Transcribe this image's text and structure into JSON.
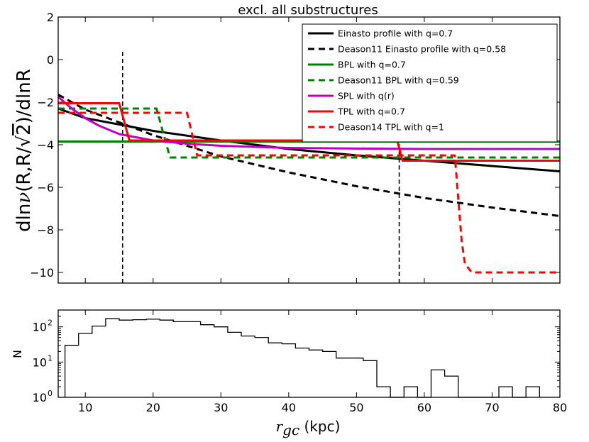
{
  "chart_data": [
    {
      "type": "line",
      "title": "excl. all substructures",
      "xlabel": "",
      "ylabel": "dlnν(R,R/√2)/dlnR",
      "ylabel_parts": {
        "a": "dln",
        "nu": "ν",
        "b": "(R,R/",
        "sqrt": "√",
        "two": "2",
        "c": ")/dlnR"
      },
      "xlim": [
        6,
        80
      ],
      "ylim": [
        -10.5,
        2
      ],
      "xticks": [
        10,
        20,
        30,
        40,
        50,
        60,
        70,
        80
      ],
      "yticks": [
        2,
        0,
        -2,
        -4,
        -6,
        -8,
        -10
      ],
      "ytick_labels": [
        "2",
        "0",
        "−2",
        "−4",
        "−6",
        "−8",
        "−10"
      ],
      "legend_position": "top-right",
      "vlines": [
        15.5,
        56.3
      ],
      "vline_ymax": 0.5,
      "series": [
        {
          "name": "Einasto profile with q=0.7",
          "color": "#000000",
          "dash": "solid",
          "x": [
            6,
            10,
            20,
            30,
            40,
            50,
            60,
            70,
            80
          ],
          "y": [
            -2.3,
            -2.75,
            -3.35,
            -3.8,
            -4.2,
            -4.5,
            -4.75,
            -5.0,
            -5.25
          ]
        },
        {
          "name": "Deason11 Einasto profile with q=0.58",
          "color": "#000000",
          "dash": "dashed",
          "x": [
            6,
            10,
            20,
            30,
            40,
            50,
            60,
            70,
            80
          ],
          "y": [
            -1.65,
            -2.35,
            -3.55,
            -4.55,
            -5.3,
            -5.95,
            -6.5,
            -6.95,
            -7.35
          ]
        },
        {
          "name": "BPL with q=0.7",
          "color": "#008000",
          "dash": "solid",
          "x": [
            6,
            56.3,
            56.3,
            80
          ],
          "y": [
            -3.85,
            -3.85,
            -3.85,
            -3.85
          ]
        },
        {
          "name": "Deason11 BPL with q=0.59",
          "color": "#008000",
          "dash": "dashed",
          "x": [
            6,
            20.5,
            22.5,
            80
          ],
          "y": [
            -2.3,
            -2.3,
            -4.6,
            -4.6
          ]
        },
        {
          "name": "SPL with q(r)",
          "color": "#bf00bf",
          "dash": "solid",
          "x": [
            6,
            8,
            10,
            12,
            15,
            20,
            25,
            30,
            40,
            50,
            60,
            70,
            80
          ],
          "y": [
            -1.75,
            -2.3,
            -2.75,
            -3.1,
            -3.5,
            -3.8,
            -3.95,
            -4.05,
            -4.15,
            -4.18,
            -4.2,
            -4.2,
            -4.2
          ]
        },
        {
          "name": "TPL with q=0.7",
          "color": "#ff0000",
          "dash": "solid",
          "x": [
            6,
            15,
            16.5,
            56,
            56.8,
            80
          ],
          "y": [
            -2.05,
            -2.05,
            -3.8,
            -3.8,
            -4.75,
            -4.75
          ]
        },
        {
          "name": "Deason14 TPL with q=1",
          "color": "#ff0000",
          "dash": "dashed",
          "x": [
            6,
            25,
            26.5,
            64.5,
            65,
            65.5,
            66,
            67,
            80
          ],
          "y": [
            -2.5,
            -2.5,
            -4.5,
            -4.5,
            -6.5,
            -8.5,
            -9.6,
            -10.0,
            -10.0
          ]
        }
      ]
    },
    {
      "type": "histogram",
      "title": "",
      "xlabel": "r_gc (kpc)",
      "xlabel_parts": {
        "r": "r",
        "sub": "gc",
        "unit": " (kpc)"
      },
      "ylabel": "N",
      "xlim": [
        6,
        80
      ],
      "yscale": "log",
      "ylim": [
        1,
        300
      ],
      "xticks": [
        10,
        20,
        30,
        40,
        50,
        60,
        70,
        80
      ],
      "xtick_labels": [
        "10",
        "20",
        "30",
        "40",
        "50",
        "60",
        "70",
        "80"
      ],
      "yticks": [
        1,
        10,
        100
      ],
      "ytick_labels": [
        {
          "base": "10",
          "exp": "0"
        },
        {
          "base": "10",
          "exp": "1"
        },
        {
          "base": "10",
          "exp": "2"
        }
      ],
      "bin_edges": [
        7,
        9,
        11,
        13,
        15,
        17,
        19,
        21,
        23,
        25,
        27,
        29,
        31,
        33,
        35,
        37,
        39,
        41,
        43,
        45,
        47,
        49,
        51,
        53,
        55,
        57,
        59,
        61,
        63,
        65,
        67,
        69,
        71,
        73,
        75,
        77
      ],
      "counts": [
        30,
        65,
        105,
        170,
        155,
        160,
        165,
        155,
        140,
        140,
        115,
        100,
        70,
        55,
        50,
        35,
        33,
        25,
        22,
        20,
        13,
        13,
        11,
        2,
        0,
        2,
        1,
        6,
        4,
        0,
        0,
        0,
        2,
        1,
        2
      ]
    }
  ]
}
